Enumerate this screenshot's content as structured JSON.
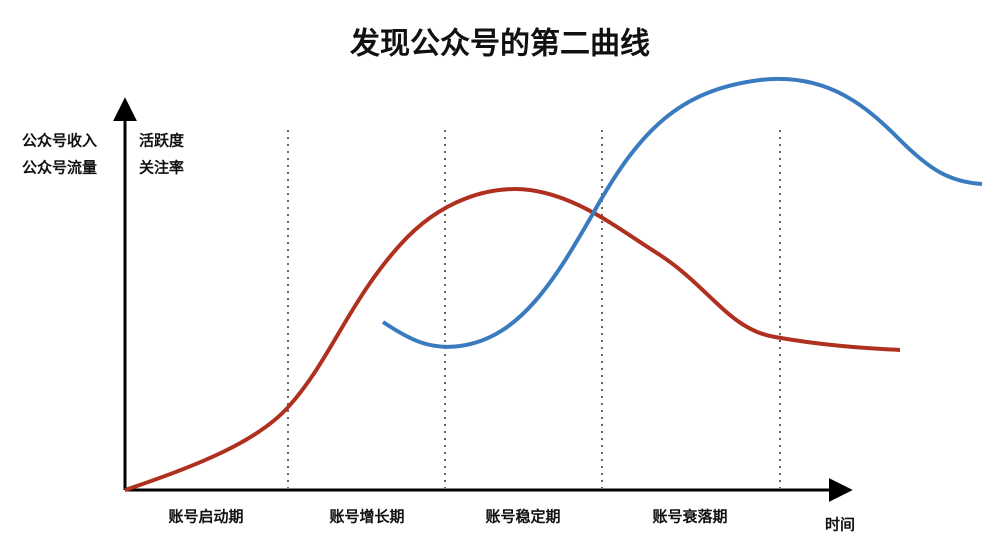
{
  "title": "发现公众号的第二曲线",
  "y_axis_labels": {
    "left": [
      "公众号收入",
      "公众号流量"
    ],
    "right": [
      "活跃度",
      "关注率"
    ]
  },
  "phases": [
    "账号启动期",
    "账号增长期",
    "账号稳定期",
    "账号衰落期"
  ],
  "x_axis_label": "时间"
}
